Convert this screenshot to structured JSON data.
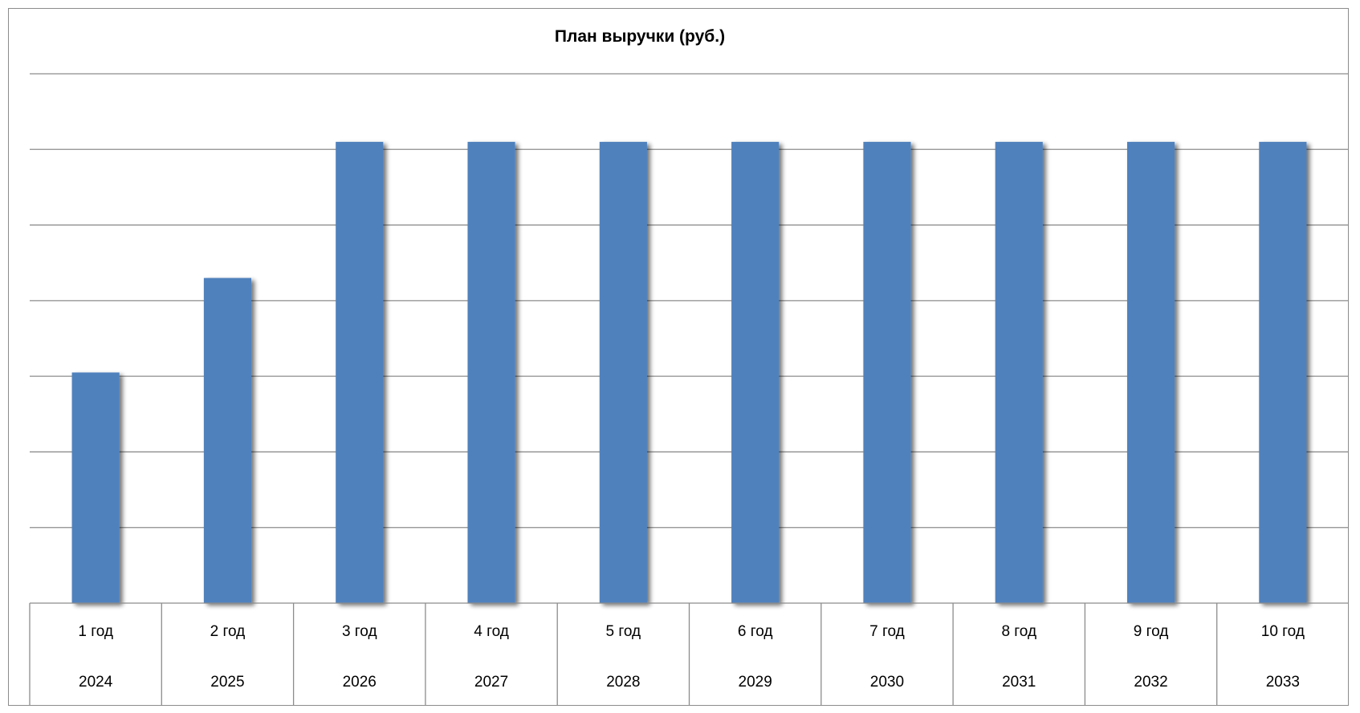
{
  "chart_data": {
    "type": "bar",
    "title": "План выручки (руб.)",
    "xlabel": "",
    "ylabel": "",
    "categories": [
      "1 год",
      "2 год",
      "3 год",
      "4 год",
      "5 год",
      "6 год",
      "7 год",
      "8 год",
      "9 год",
      "10 год"
    ],
    "years": [
      "2024",
      "2025",
      "2026",
      "2027",
      "2028",
      "2029",
      "2030",
      "2031",
      "2032",
      "2033"
    ],
    "values": [
      3.05,
      4.3,
      6.1,
      6.1,
      6.1,
      6.1,
      6.1,
      6.1,
      6.1,
      6.1
    ],
    "ylim": [
      0,
      7
    ],
    "y_axis_labels_visible": false,
    "grid": true,
    "legend": "none",
    "colors": {
      "bar": "#4f81bd",
      "gridline": "#8c8c8c",
      "border": "#8c8c8c"
    }
  }
}
